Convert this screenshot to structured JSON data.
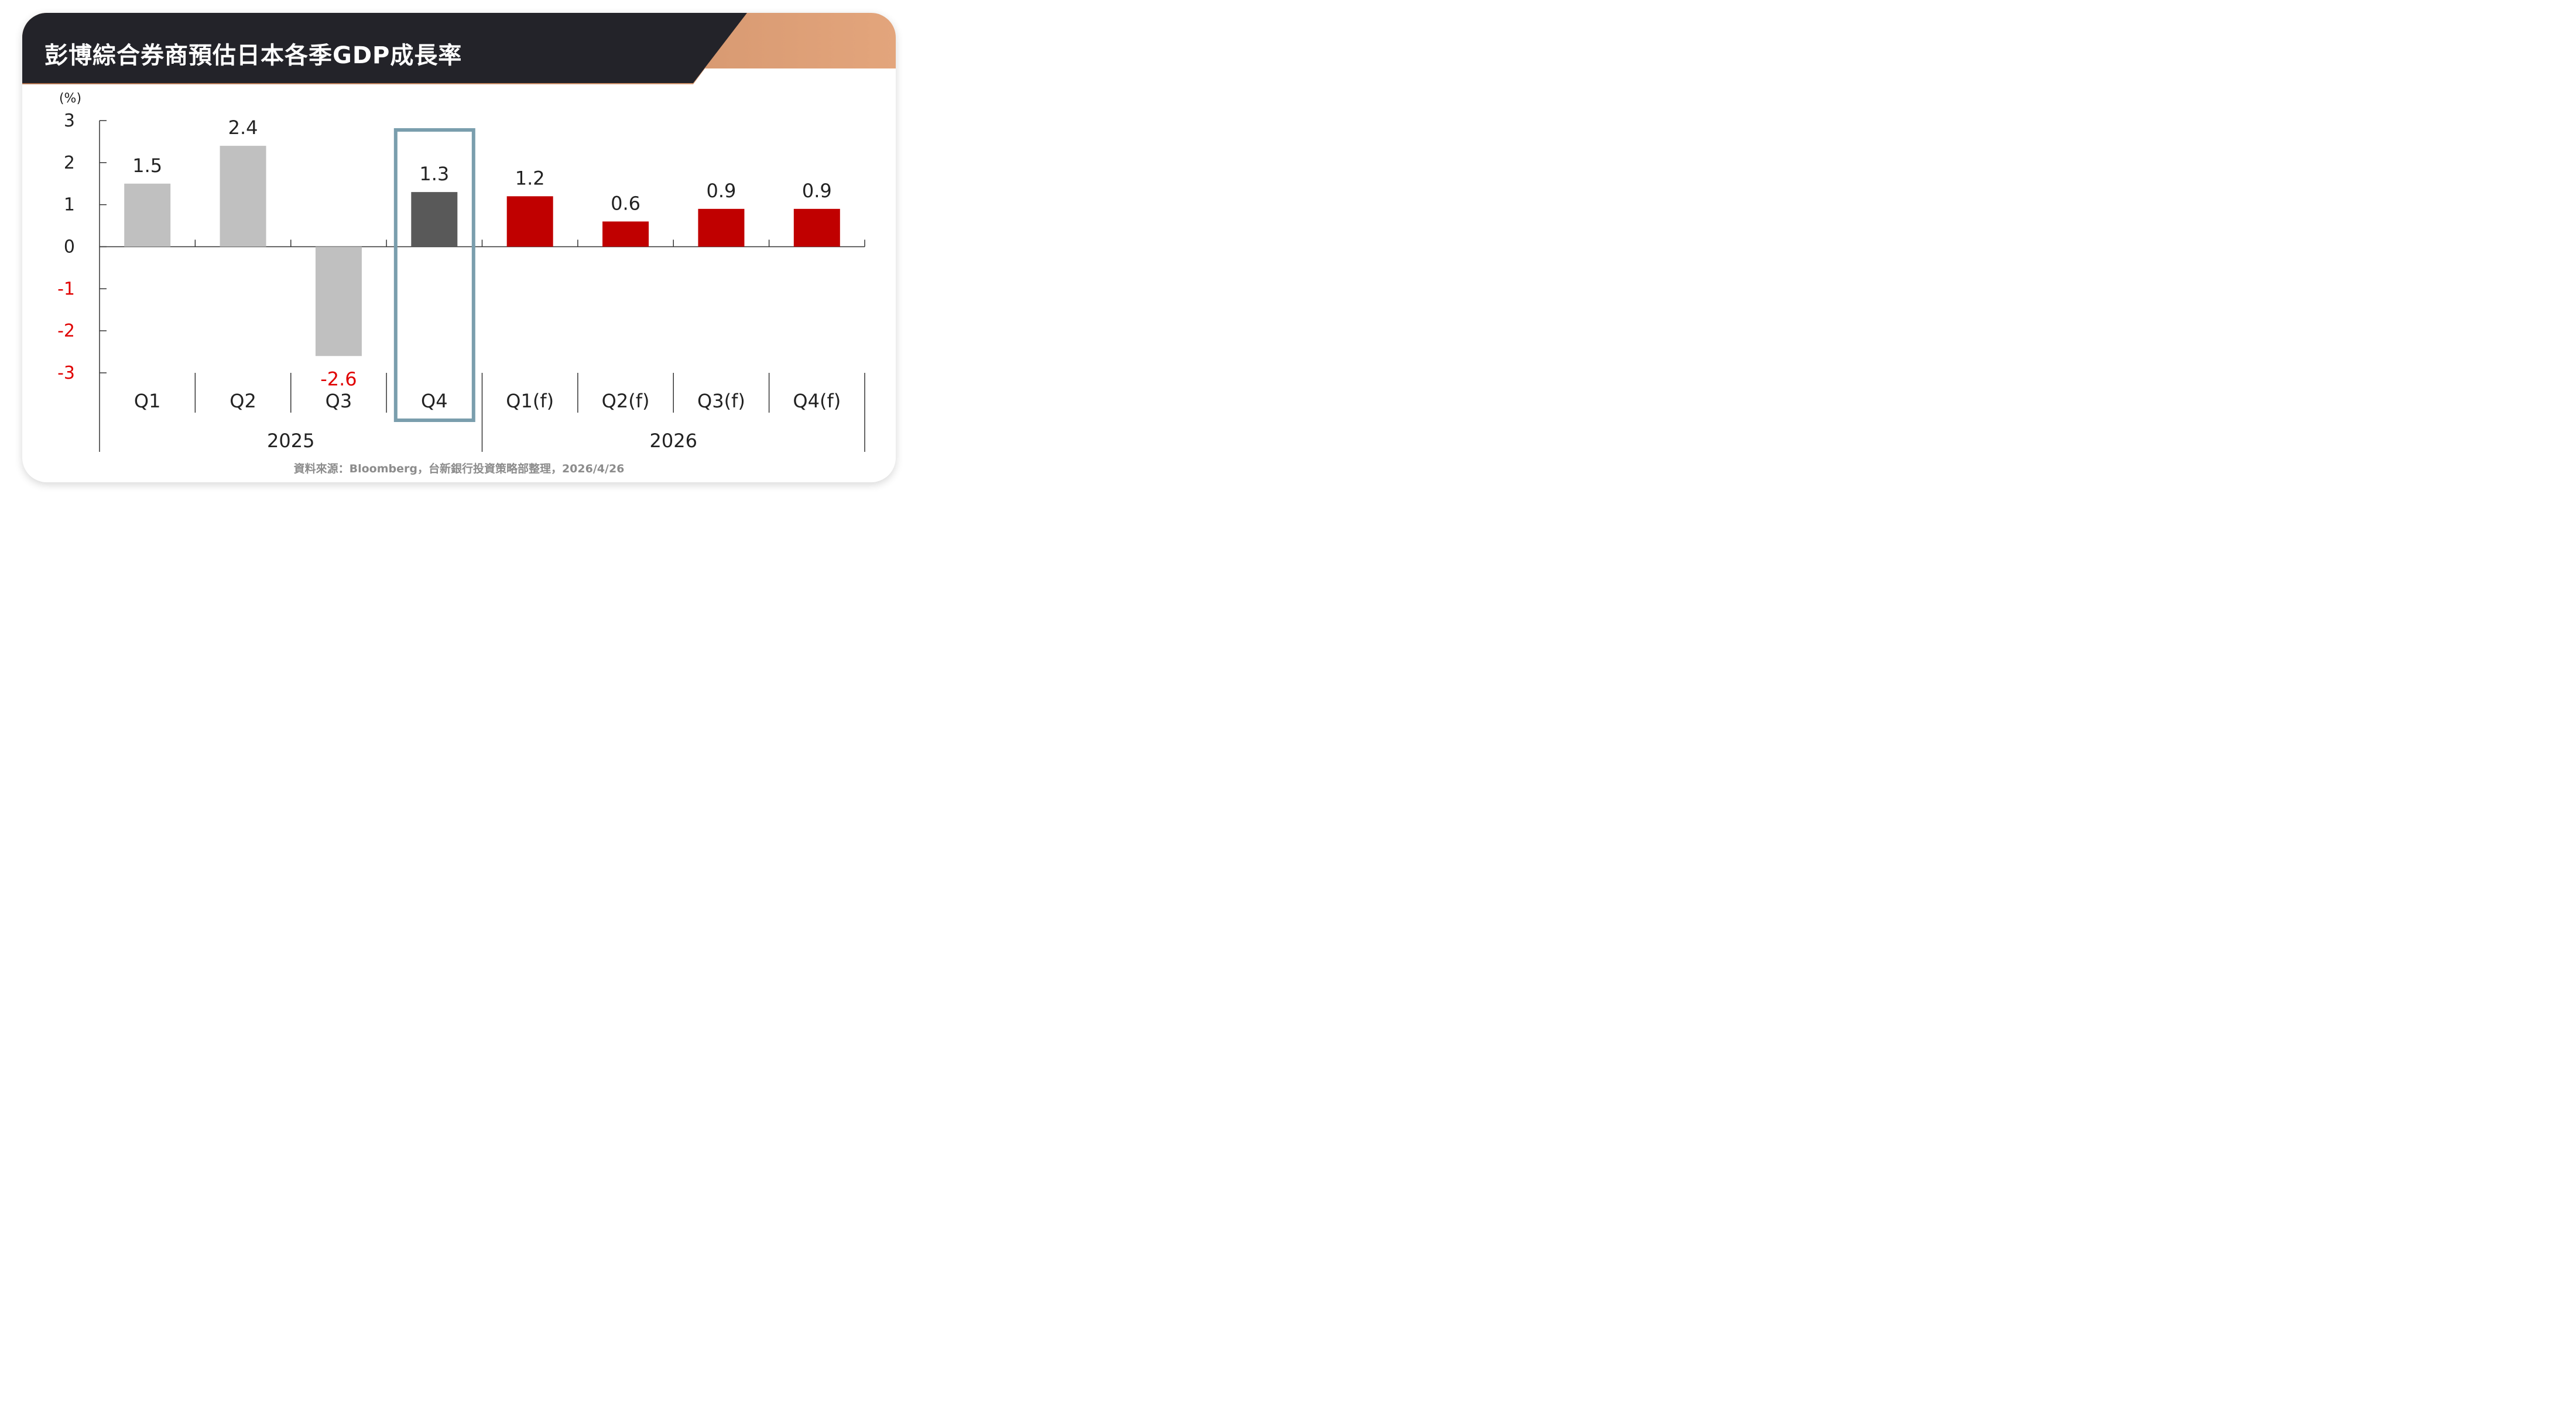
{
  "header": {
    "title": "彭博綜合券商預估日本各季GDP成長率"
  },
  "chart_data": {
    "type": "bar",
    "ylabel": "(%)",
    "ylim": [
      -3,
      3
    ],
    "yticks": [
      3,
      2,
      1,
      0,
      -1,
      -2,
      -3
    ],
    "categories": [
      "Q1",
      "Q2",
      "Q3",
      "Q4",
      "Q1(f)",
      "Q2(f)",
      "Q3(f)",
      "Q4(f)"
    ],
    "groups": [
      {
        "label": "2025",
        "span": 4
      },
      {
        "label": "2026",
        "span": 4
      }
    ],
    "values": [
      1.5,
      2.4,
      -2.6,
      1.3,
      1.2,
      0.6,
      0.9,
      0.9
    ],
    "data_labels": [
      "1.5",
      "2.4",
      "-2.6",
      "1.3",
      "1.2",
      "0.6",
      "0.9",
      "0.9"
    ],
    "highlighted_category": "Q4",
    "colors": {
      "actual": "#c0c0c0",
      "highlight": "#595959",
      "forecast": "#c00000",
      "negative_text": "#e00000",
      "highlight_box": "#7a9ead",
      "axis": "#333333"
    },
    "grid": false,
    "legend": "none"
  },
  "footer": {
    "source": "資料來源：Bloomberg，台新銀行投資策略部整理，2026/4/26"
  }
}
